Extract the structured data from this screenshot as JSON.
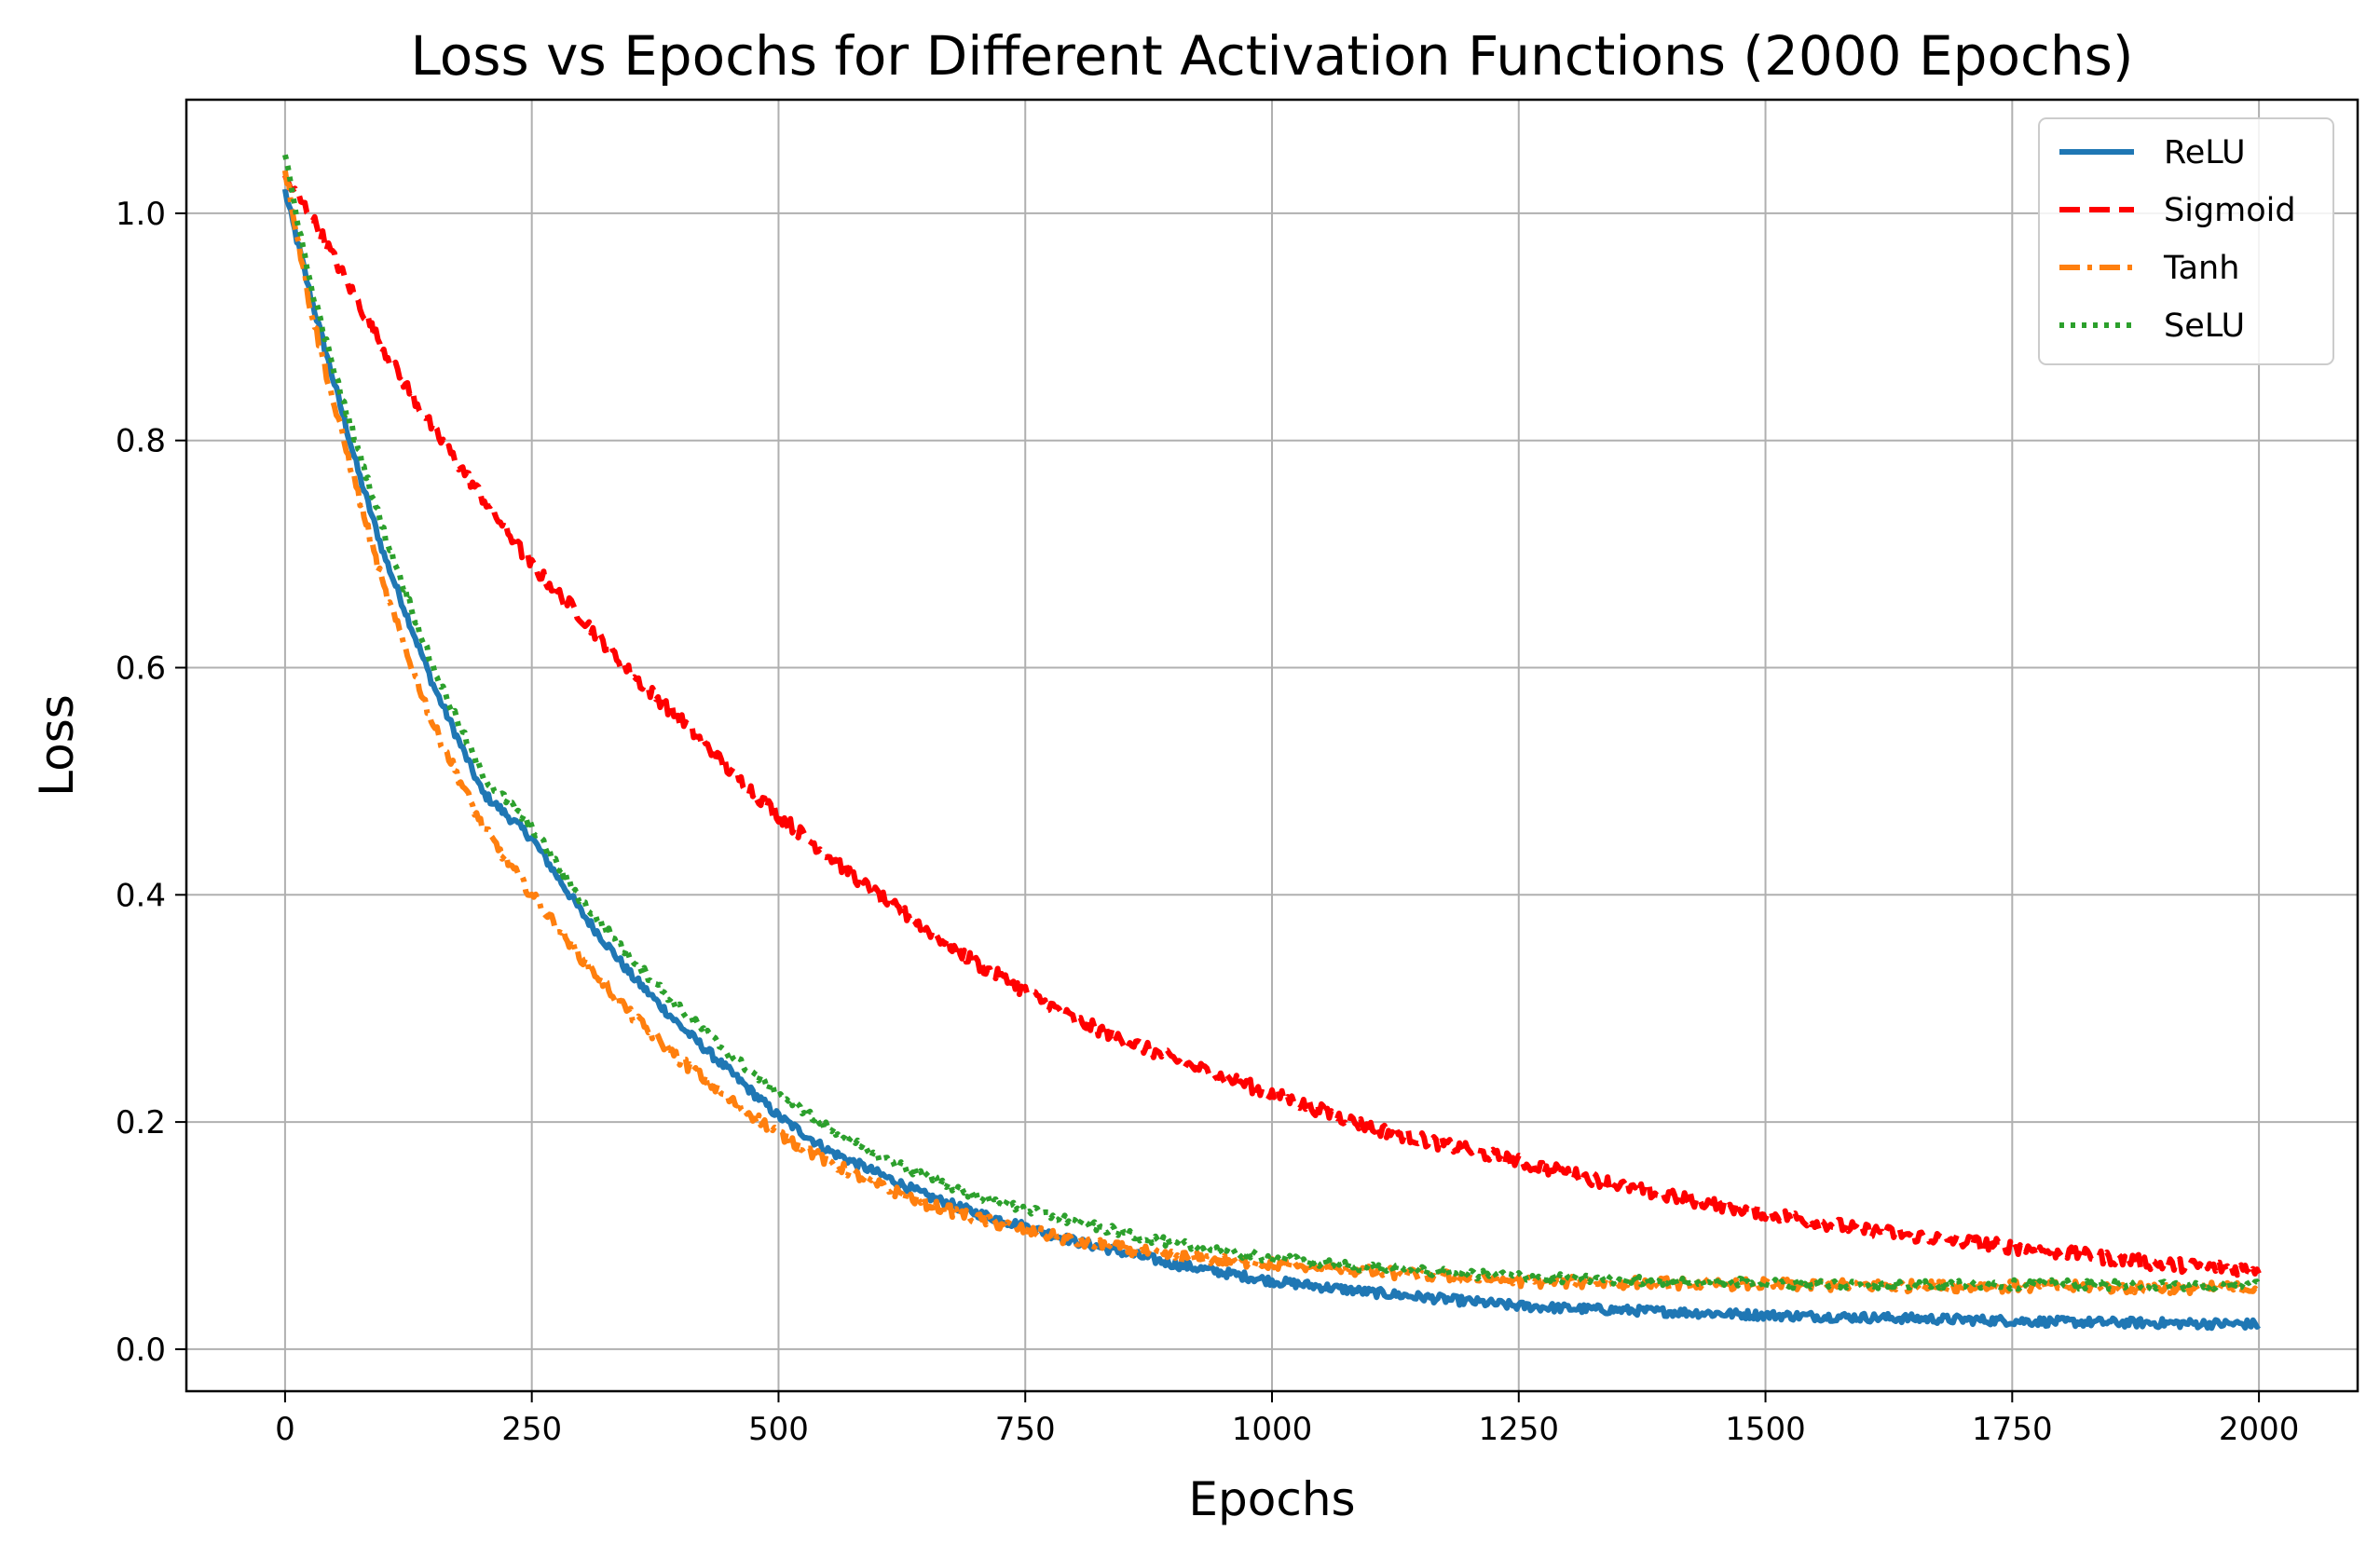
{
  "chart_data": {
    "type": "line",
    "title": "Loss vs Epochs for Different Activation Functions (2000 Epochs)",
    "xlabel": "Epochs",
    "ylabel": "Loss",
    "xlim": [
      -100,
      2100
    ],
    "ylim": [
      -0.037,
      1.1
    ],
    "xticks": [
      0,
      250,
      500,
      750,
      1000,
      1250,
      1500,
      1750,
      2000
    ],
    "xtick_labels": [
      "0",
      "250",
      "500",
      "750",
      "1000",
      "1250",
      "1500",
      "1750",
      "2000"
    ],
    "yticks": [
      0.0,
      0.2,
      0.4,
      0.6,
      0.8,
      1.0
    ],
    "ytick_labels": [
      "0.0",
      "0.2",
      "0.4",
      "0.6",
      "0.8",
      "1.0"
    ],
    "grid": true,
    "legend_position": "top-right",
    "x_range": [
      0,
      2000
    ],
    "series": [
      {
        "name": "ReLU",
        "color": "#1f77b4",
        "linestyle": "solid",
        "noise": 0.004,
        "x": [
          0,
          25,
          50,
          75,
          100,
          150,
          200,
          250,
          300,
          350,
          400,
          450,
          500,
          550,
          600,
          650,
          700,
          750,
          800,
          900,
          1000,
          1100,
          1200,
          1250,
          1300,
          1400,
          1500,
          1600,
          1700,
          1750,
          1800,
          1900,
          2000
        ],
        "y": [
          1.02,
          0.93,
          0.85,
          0.77,
          0.7,
          0.585,
          0.49,
          0.45,
          0.385,
          0.33,
          0.285,
          0.245,
          0.205,
          0.175,
          0.155,
          0.135,
          0.12,
          0.108,
          0.095,
          0.075,
          0.06,
          0.05,
          0.042,
          0.038,
          0.036,
          0.033,
          0.03,
          0.028,
          0.026,
          0.025,
          0.024,
          0.023,
          0.022
        ]
      },
      {
        "name": "Sigmoid",
        "color": "#ff0000",
        "linestyle": "dashed",
        "noise": 0.006,
        "x": [
          0,
          25,
          50,
          75,
          100,
          150,
          200,
          250,
          300,
          350,
          400,
          450,
          500,
          550,
          600,
          650,
          700,
          750,
          800,
          900,
          1000,
          1100,
          1200,
          1250,
          1300,
          1400,
          1500,
          1600,
          1700,
          1750,
          1800,
          1900,
          2000
        ],
        "y": [
          1.03,
          1.0,
          0.96,
          0.92,
          0.88,
          0.81,
          0.75,
          0.69,
          0.645,
          0.595,
          0.555,
          0.51,
          0.47,
          0.435,
          0.4,
          0.37,
          0.34,
          0.315,
          0.29,
          0.255,
          0.225,
          0.195,
          0.175,
          0.165,
          0.155,
          0.135,
          0.12,
          0.105,
          0.095,
          0.09,
          0.085,
          0.075,
          0.07
        ]
      },
      {
        "name": "Tanh",
        "color": "#ff7f0e",
        "linestyle": "dashdot",
        "noise": 0.005,
        "x": [
          0,
          25,
          50,
          75,
          100,
          150,
          200,
          250,
          300,
          350,
          400,
          450,
          500,
          550,
          600,
          650,
          700,
          750,
          800,
          900,
          1000,
          1100,
          1200,
          1250,
          1300,
          1400,
          1500,
          1600,
          1700,
          1750,
          1800,
          1900,
          2000
        ],
        "y": [
          1.04,
          0.92,
          0.83,
          0.75,
          0.67,
          0.55,
          0.46,
          0.4,
          0.345,
          0.295,
          0.255,
          0.22,
          0.19,
          0.165,
          0.145,
          0.128,
          0.115,
          0.105,
          0.095,
          0.082,
          0.075,
          0.068,
          0.063,
          0.06,
          0.059,
          0.058,
          0.057,
          0.056,
          0.055,
          0.055,
          0.055,
          0.054,
          0.054
        ]
      },
      {
        "name": "SeLU",
        "color": "#2ca02c",
        "linestyle": "dotted",
        "noise": 0.004,
        "x": [
          0,
          25,
          50,
          75,
          100,
          150,
          200,
          250,
          300,
          350,
          400,
          450,
          500,
          550,
          600,
          650,
          700,
          750,
          800,
          900,
          1000,
          1100,
          1200,
          1250,
          1300,
          1400,
          1500,
          1600,
          1700,
          1750,
          1800,
          1900,
          2000
        ],
        "y": [
          1.05,
          0.94,
          0.86,
          0.79,
          0.72,
          0.6,
          0.505,
          0.46,
          0.395,
          0.345,
          0.3,
          0.26,
          0.225,
          0.195,
          0.17,
          0.152,
          0.135,
          0.123,
          0.112,
          0.093,
          0.08,
          0.072,
          0.066,
          0.064,
          0.062,
          0.06,
          0.058,
          0.057,
          0.057,
          0.057,
          0.057,
          0.056,
          0.056
        ]
      }
    ]
  }
}
